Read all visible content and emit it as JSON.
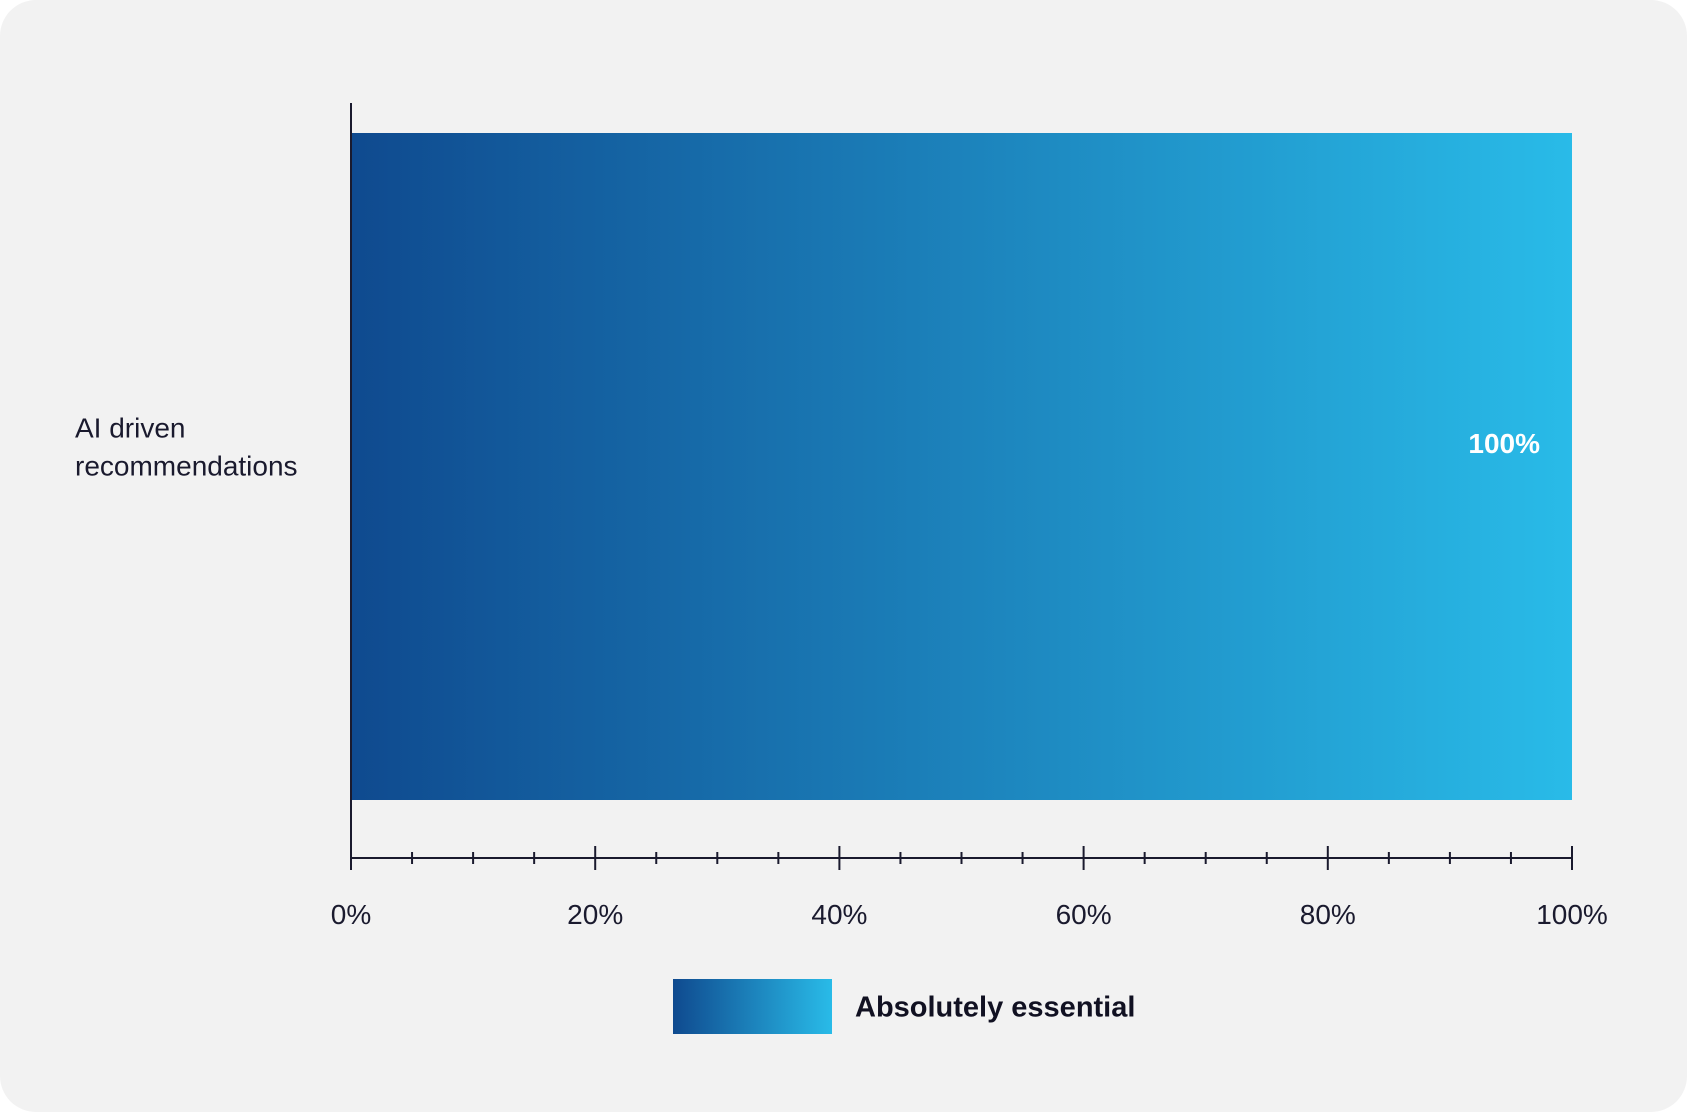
{
  "chart_data": {
    "type": "bar",
    "orientation": "horizontal",
    "categories": [
      "AI driven recommendations"
    ],
    "category_lines": [
      [
        "AI driven",
        "recommendations"
      ]
    ],
    "series": [
      {
        "name": "Absolutely essential",
        "values": [
          100
        ]
      }
    ],
    "data_labels": [
      "100%"
    ],
    "xlim": [
      0,
      100
    ],
    "x_ticks": [
      0,
      20,
      40,
      60,
      80,
      100
    ],
    "x_tick_labels": [
      "0%",
      "20%",
      "40%",
      "60%",
      "80%",
      "100%"
    ],
    "x_minor_step": 5,
    "title": "",
    "xlabel": "",
    "ylabel": "",
    "grid": false,
    "legend_position": "bottom",
    "colors": {
      "gradient_start": "#0f4a8f",
      "gradient_end": "#29bbe8",
      "axis": "#1a1a2e",
      "background": "#f2f2f2"
    }
  }
}
